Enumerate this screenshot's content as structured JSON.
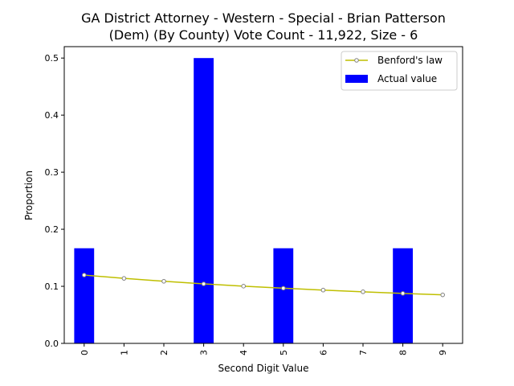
{
  "chart_data": {
    "type": "bar",
    "title_lines": [
      "GA District Attorney - Western - Special - Brian Patterson",
      "(Dem) (By County) Vote Count - 11,922, Size - 6"
    ],
    "xlabel": "Second Digit Value",
    "ylabel": "Proportion",
    "categories": [
      "0",
      "1",
      "2",
      "3",
      "4",
      "5",
      "6",
      "7",
      "8",
      "9"
    ],
    "ylim": [
      0,
      0.52
    ],
    "yticks": [
      0.0,
      0.1,
      0.2,
      0.3,
      0.4,
      0.5
    ],
    "ytick_labels": [
      "0.0",
      "0.1",
      "0.2",
      "0.3",
      "0.4",
      "0.5"
    ],
    "series": [
      {
        "name": "Actual value",
        "kind": "bar",
        "color": "#0000ff",
        "values": [
          0.1667,
          0,
          0,
          0.5,
          0,
          0.1667,
          0,
          0,
          0.1667,
          0
        ]
      },
      {
        "name": "Benford's law",
        "kind": "line",
        "color": "#bfbf00",
        "marker_color": "#808080",
        "values": [
          0.1197,
          0.1139,
          0.1088,
          0.1043,
          0.1003,
          0.0967,
          0.0934,
          0.0904,
          0.0876,
          0.085
        ]
      }
    ],
    "legend": {
      "position": "top-right",
      "entries": [
        "Benford's law",
        "Actual value"
      ]
    },
    "grid": false
  }
}
